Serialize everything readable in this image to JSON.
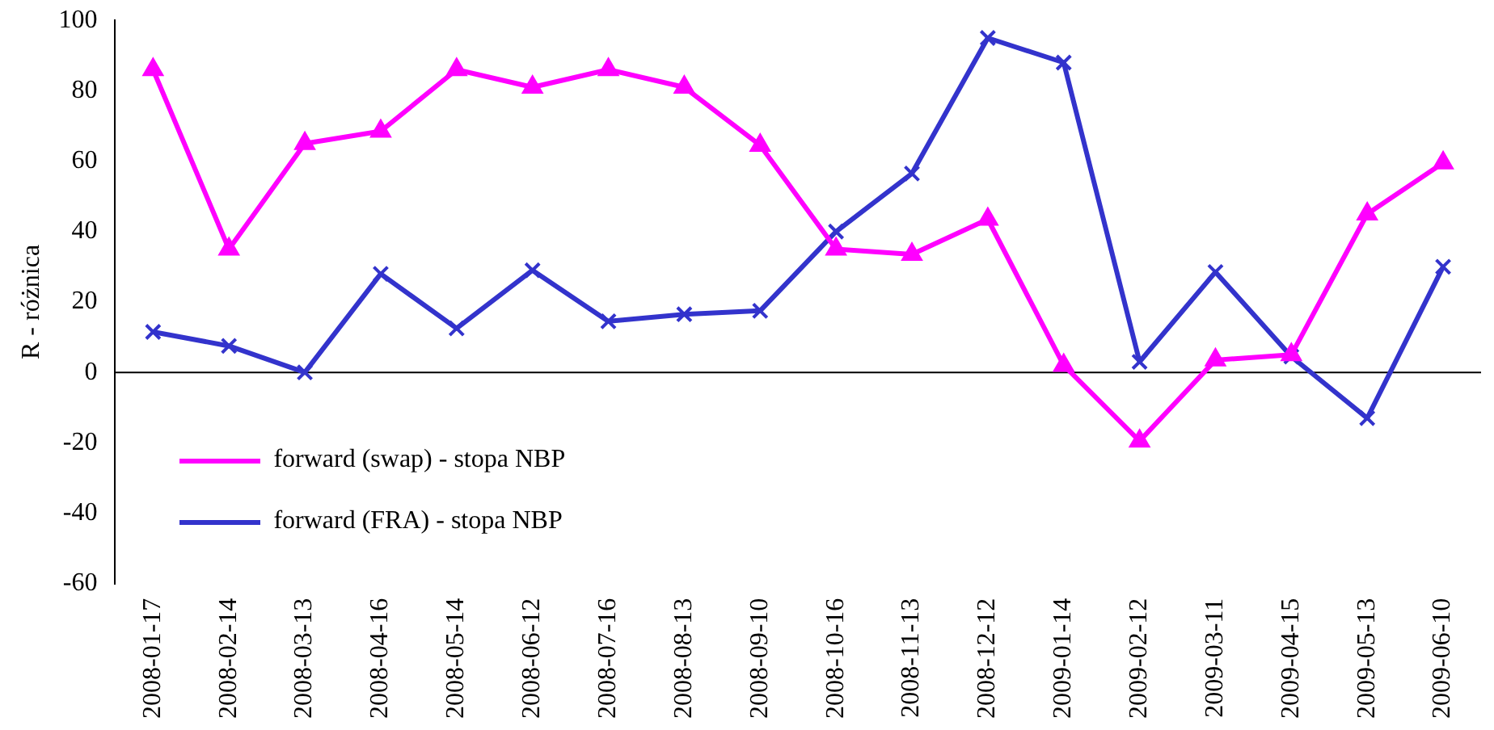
{
  "chart_data": {
    "type": "line",
    "ylabel": "R - różnica",
    "categories": [
      "2008-01-17",
      "2008-02-14",
      "2008-03-13",
      "2008-04-16",
      "2008-05-14",
      "2008-06-12",
      "2008-07-16",
      "2008-08-13",
      "2008-09-10",
      "2008-10-16",
      "2008-11-13",
      "2008-12-12",
      "2009-01-14",
      "2009-02-12",
      "2009-03-11",
      "2009-04-15",
      "2009-05-13",
      "2009-06-10"
    ],
    "series": [
      {
        "name": "forward (swap) - stopa NBP",
        "color": "#ff00ff",
        "marker": "triangle",
        "values": [
          86,
          35,
          65,
          68.5,
          86,
          81,
          86,
          81,
          64.5,
          35,
          33.5,
          43.5,
          2,
          -19.5,
          3.5,
          5,
          45,
          59.5
        ]
      },
      {
        "name": "forward (FRA) - stopa NBP",
        "color": "#3333cc",
        "marker": "cross",
        "values": [
          11.5,
          7.5,
          0,
          28,
          12.5,
          29,
          14.5,
          16.5,
          17.5,
          40,
          56.5,
          95,
          88,
          3,
          28.5,
          4.5,
          -13,
          30
        ]
      }
    ],
    "ylim": [
      -60,
      100
    ],
    "yticks": [
      -60,
      -40,
      -20,
      0,
      20,
      40,
      60,
      80,
      100
    ],
    "legend": "bottom left",
    "line_style": "solid"
  }
}
